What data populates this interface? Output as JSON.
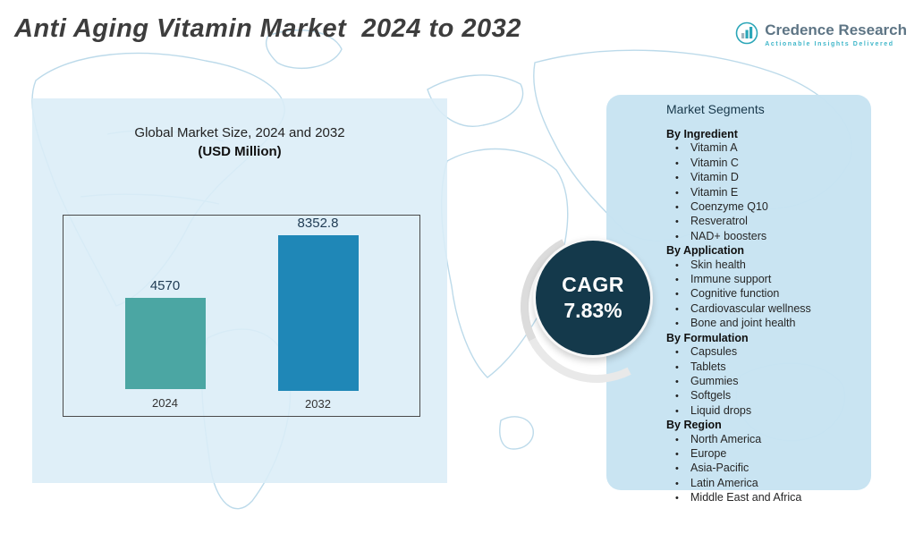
{
  "header": {
    "title": "Anti Aging Vitamin Market  2024 to 2032",
    "brand": {
      "name": "Credence Research",
      "tagline": "Actionable Insights Delivered"
    }
  },
  "chart_panel": {
    "title_line1": "Global Market Size, 2024 and 2032",
    "title_line2": "(USD Million)"
  },
  "chart_data": {
    "type": "bar",
    "title": "Global Market Size, 2024 and 2032 (USD Million)",
    "categories": [
      "2024",
      "2032"
    ],
    "values": [
      4570,
      8352.8
    ],
    "value_labels": [
      "4570",
      "8352.8"
    ],
    "ylim": [
      0,
      10000
    ],
    "bar_colors": [
      "#4ba6a3",
      "#1f87b7"
    ],
    "xlabel": "",
    "ylabel": "USD Million",
    "grid": false,
    "legend": "none"
  },
  "cagr": {
    "label": "CAGR",
    "value": "7.83%"
  },
  "segments": {
    "title": "Market Segments",
    "groups": [
      {
        "label": "By Ingredient",
        "items": [
          "Vitamin A",
          "Vitamin C",
          "Vitamin D",
          "Vitamin E",
          "Coenzyme Q10",
          "Resveratrol",
          "NAD+ boosters"
        ]
      },
      {
        "label": "By Application",
        "items": [
          "Skin health",
          "Immune support",
          "Cognitive function",
          "Cardiovascular wellness",
          "Bone and joint health"
        ]
      },
      {
        "label": "By Formulation",
        "items": [
          "Capsules",
          "Tablets",
          "Gummies",
          "Softgels",
          "Liquid drops"
        ]
      },
      {
        "label": "By Region",
        "items": [
          "North America",
          "Europe",
          "Asia-Pacific",
          "Latin America",
          "Middle East and Africa"
        ]
      }
    ]
  },
  "colors": {
    "panel_bg": "#dbedf7",
    "segments_bg": "#c7e3f1",
    "circle_bg": "#14394b",
    "accent_teal": "#2ba6b8",
    "map_line": "#b5d6e8"
  }
}
